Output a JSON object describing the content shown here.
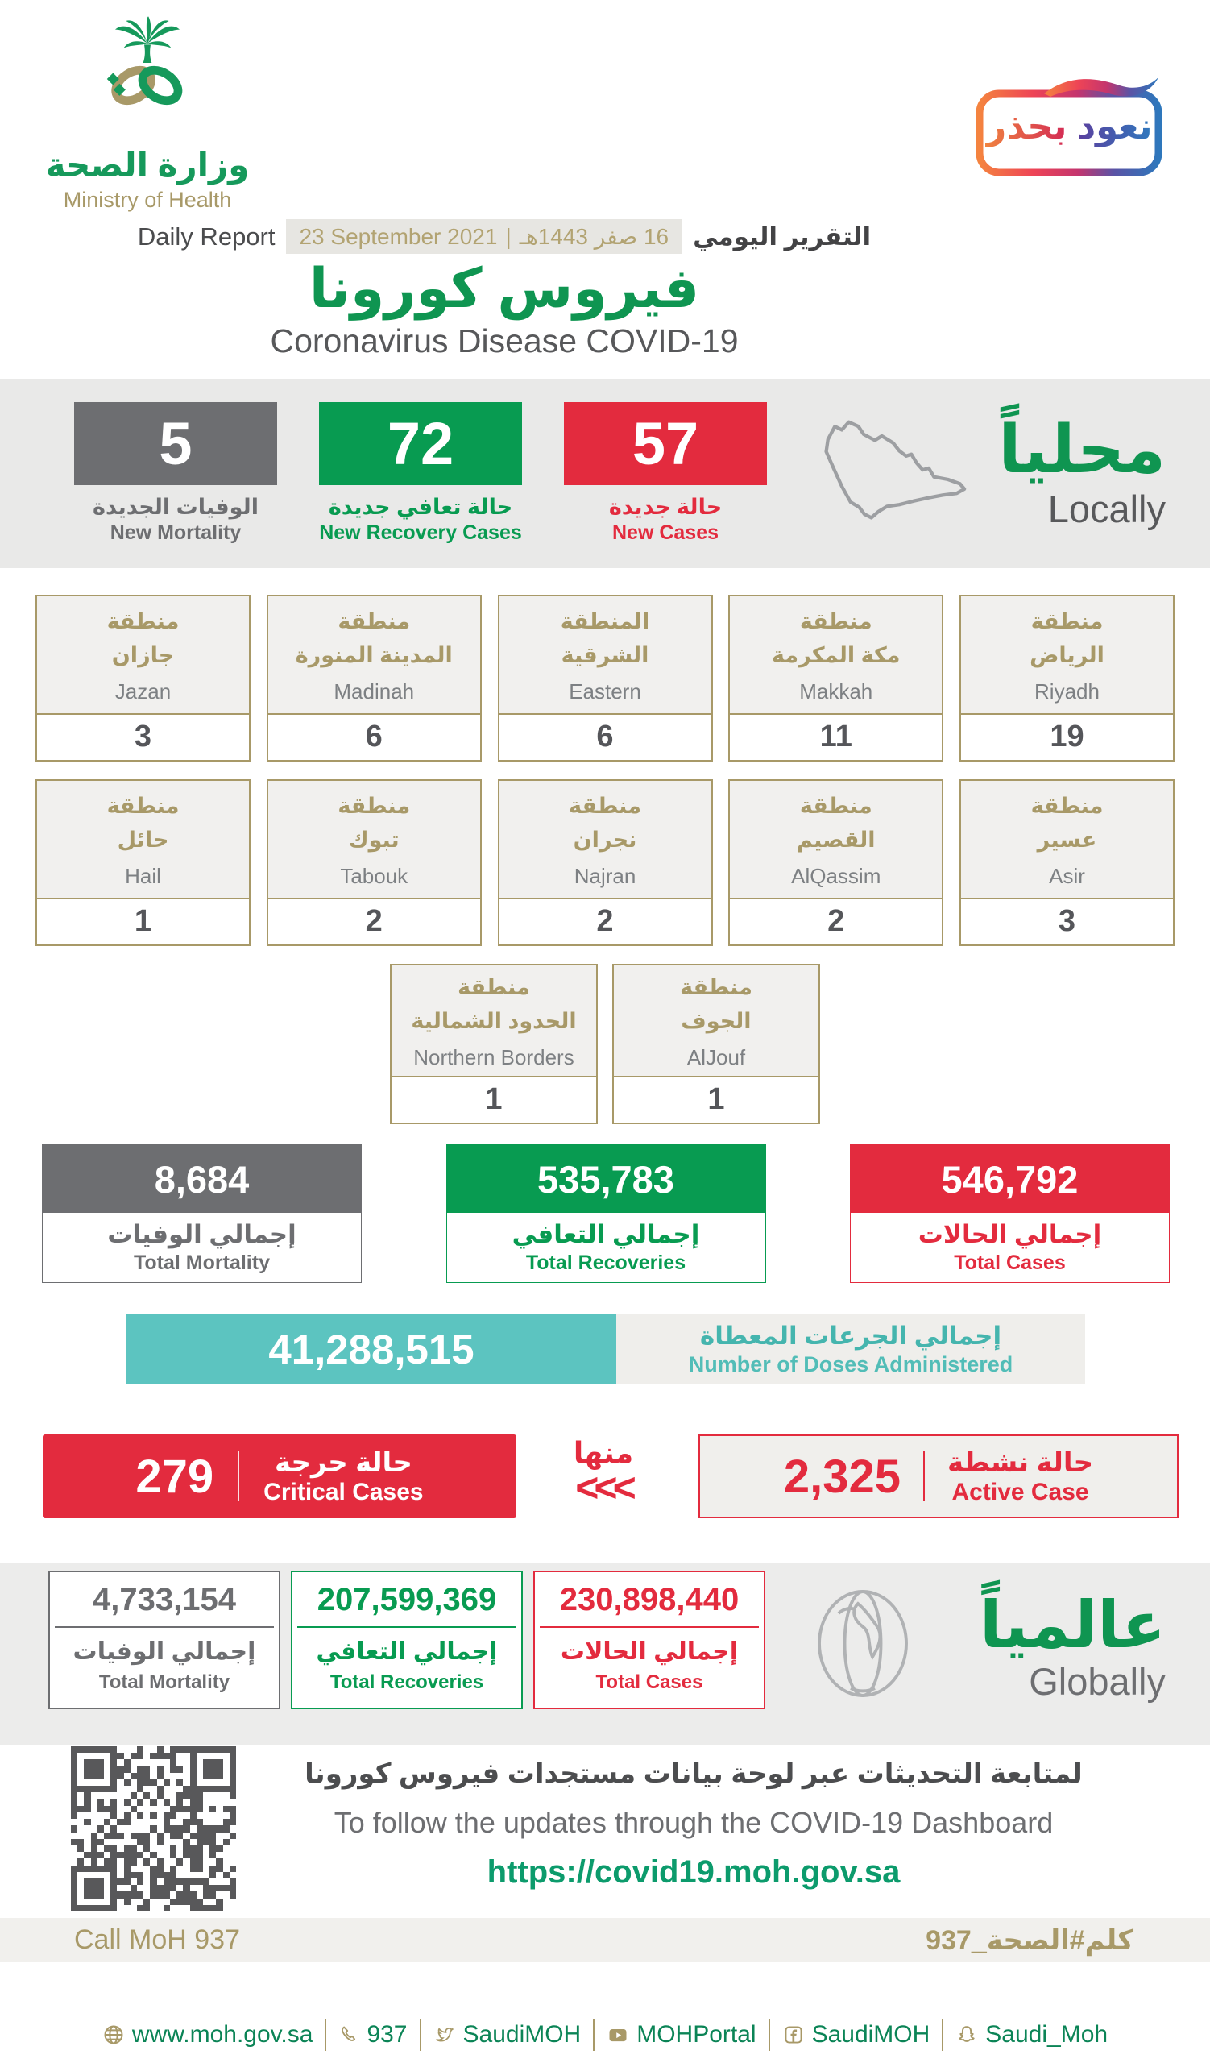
{
  "colors": {
    "green": "#089b51",
    "red": "#e32b3e",
    "gray": "#6d6e71",
    "gold": "#a89968",
    "teal": "#5cc4c0",
    "url_green": "#0c9b6c",
    "footer_green": "#0b8456",
    "heading_green": "#0f9551",
    "band_gray": "#e9e9e8"
  },
  "header": {
    "logo": {
      "arabic": "وزارة الصحة",
      "english": "Ministry of Health"
    },
    "badge": {
      "word1": "نعود",
      "word2": "بحذر"
    },
    "report_row": {
      "daily_report": "Daily Report",
      "date_en": "23 September 2021",
      "separator": "|",
      "date_hijri": "16 صفر 1443هـ",
      "arabic_title": "التقرير اليومي"
    },
    "title_ar": "فيروس كورونا",
    "title_en": "Coronavirus Disease COVID-19"
  },
  "locally": {
    "heading_ar": "محلياً",
    "heading_en": "Locally",
    "stats": [
      {
        "value": "5",
        "label_ar": "الوفيات الجديدة",
        "label_en": "New Mortality"
      },
      {
        "value": "72",
        "label_ar": "حالة تعافي جديدة",
        "label_en": "New Recovery Cases"
      },
      {
        "value": "57",
        "label_ar": "حالة جديدة",
        "label_en": "New Cases"
      }
    ]
  },
  "regions": {
    "row1": [
      {
        "ar1": "منطقة",
        "ar2": "جازان",
        "en": "Jazan",
        "value": "3"
      },
      {
        "ar1": "منطقة",
        "ar2": "المدينة المنورة",
        "en": "Madinah",
        "value": "6"
      },
      {
        "ar1": "المنطقة",
        "ar2": "الشرقية",
        "en": "Eastern",
        "value": "6"
      },
      {
        "ar1": "منطقة",
        "ar2": "مكة المكرمة",
        "en": "Makkah",
        "value": "11"
      },
      {
        "ar1": "منطقة",
        "ar2": "الرياض",
        "en": "Riyadh",
        "value": "19"
      }
    ],
    "row2": [
      {
        "ar1": "منطقة",
        "ar2": "حائل",
        "en": "Hail",
        "value": "1"
      },
      {
        "ar1": "منطقة",
        "ar2": "تبوك",
        "en": "Tabouk",
        "value": "2"
      },
      {
        "ar1": "منطقة",
        "ar2": "نجران",
        "en": "Najran",
        "value": "2"
      },
      {
        "ar1": "منطقة",
        "ar2": "القصيم",
        "en": "AlQassim",
        "value": "2"
      },
      {
        "ar1": "منطقة",
        "ar2": "عسير",
        "en": "Asir",
        "value": "3"
      }
    ],
    "row3": [
      {
        "ar1": "منطقة",
        "ar2": "الحدود الشمالية",
        "en": "Northern Borders",
        "value": "1"
      },
      {
        "ar1": "منطقة",
        "ar2": "الجوف",
        "en": "AlJouf",
        "value": "1"
      }
    ]
  },
  "totals_local": [
    {
      "value": "8,684",
      "label_ar": "إجمالي الوفيات",
      "label_en": "Total Mortality"
    },
    {
      "value": "535,783",
      "label_ar": "إجمالي التعافي",
      "label_en": "Total Recoveries"
    },
    {
      "value": "546,792",
      "label_ar": "إجمالي الحالات",
      "label_en": "Total Cases"
    }
  ],
  "doses": {
    "value": "41,288,515",
    "label_ar": "إجمالي الجرعات المعطاة",
    "label_en": "Number of Doses Administered"
  },
  "critical": {
    "value": "279",
    "label_ar": "حالة حرجة",
    "label_en": "Critical Cases"
  },
  "minha": {
    "text": "منها",
    "chevrons": "<<<"
  },
  "active": {
    "value": "2,325",
    "label_ar": "حالة نشطة",
    "label_en": "Active Case"
  },
  "globally": {
    "heading_ar": "عالمياً",
    "heading_en": "Globally",
    "stats": [
      {
        "value": "4,733,154",
        "label_ar": "إجمالي الوفيات",
        "label_en": "Total Mortality"
      },
      {
        "value": "207,599,369",
        "label_ar": "إجمالي التعافي",
        "label_en": "Total Recoveries"
      },
      {
        "value": "230,898,440",
        "label_ar": "إجمالي الحالات",
        "label_en": "Total Cases"
      }
    ]
  },
  "dashboard": {
    "line_ar": "لمتابعة التحديثات عبر لوحة بيانات مستجدات فيروس كورونا",
    "line_en": "To follow the updates through the COVID-19 Dashboard",
    "url": "https://covid19.moh.gov.sa"
  },
  "call_band": {
    "left": "Call MoH 937",
    "right": "كلم#الصحة_937"
  },
  "footer": {
    "items": [
      {
        "icon": "globe-icon",
        "label": "www.moh.gov.sa"
      },
      {
        "icon": "phone-icon",
        "label": "937"
      },
      {
        "icon": "twitter-icon",
        "label": "SaudiMOH"
      },
      {
        "icon": "youtube-icon",
        "label": "MOHPortal"
      },
      {
        "icon": "facebook-icon",
        "label": "SaudiMOH"
      },
      {
        "icon": "snapchat-icon",
        "label": "Saudi_Moh"
      }
    ]
  }
}
